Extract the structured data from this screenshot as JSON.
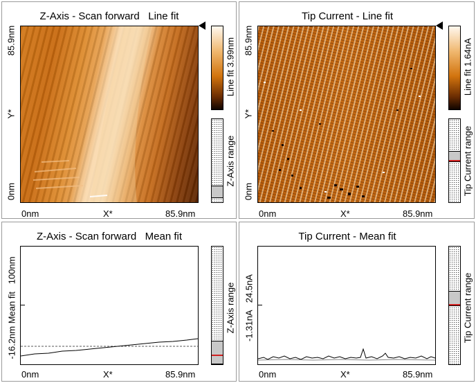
{
  "panels": {
    "z_line": {
      "title": "Z-Axis - Scan forward   Line fit",
      "y_top": "85.9nm",
      "y_mid": "Y*",
      "y_bottom": "0nm",
      "x_left": "0nm",
      "x_mid": "X*",
      "x_right": "85.9nm",
      "colorbar_label": "Line fit 3.99nm",
      "range_label": "Z-Axis range"
    },
    "tip_line": {
      "title": "Tip Current - Line fit",
      "y_top": "85.9nm",
      "y_mid": "Y*",
      "y_bottom": "0nm",
      "x_left": "0nm",
      "x_mid": "X*",
      "x_right": "85.9nm",
      "colorbar_label": "Line fit 1.64nA",
      "range_label": "Tip Current range"
    },
    "z_mean": {
      "title": "Z-Axis - Scan forward   Mean fit",
      "y_label": "-16.2nm Mean fit   100nm",
      "x_left": "0nm",
      "x_mid": "X*",
      "x_right": "85.9nm",
      "range_label": "Z-Axis range"
    },
    "tip_mean": {
      "title": "Tip Current - Mean fit",
      "y_label": "-1.31nA   24.5nA",
      "x_left": "0nm",
      "x_mid": "X*",
      "x_right": "85.9nm",
      "range_label": "Tip Current range"
    }
  },
  "colors": {
    "afm_dark": "#5a2400",
    "afm_mid": "#c86a10",
    "afm_light": "#f8dcb0",
    "range_marker": "#d02020"
  }
}
